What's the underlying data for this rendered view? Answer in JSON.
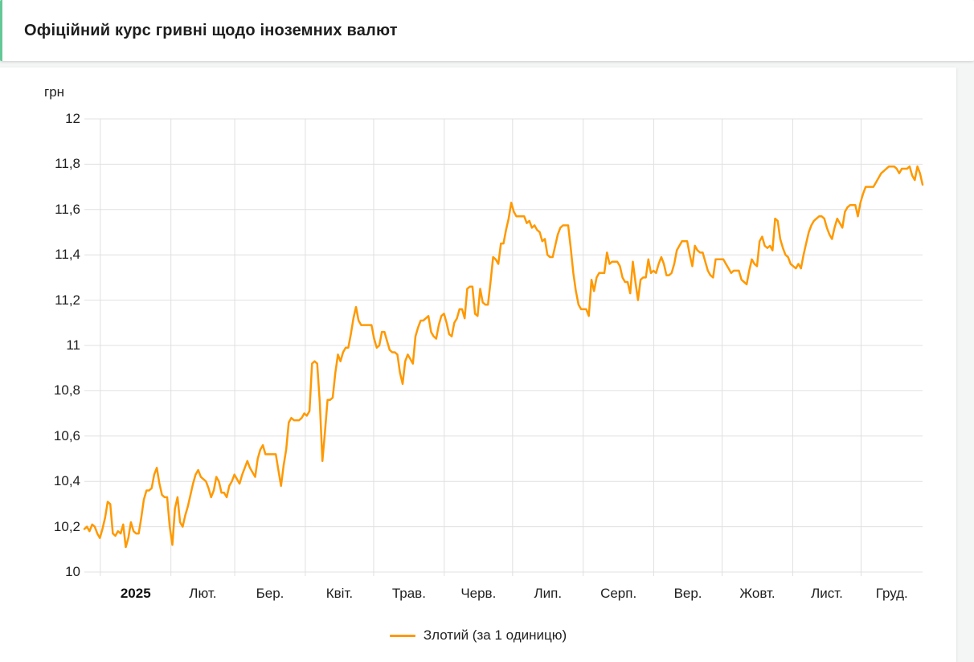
{
  "header": {
    "title": "Офіційний курс гривні щодо іноземних валют"
  },
  "colors": {
    "accent_green": "#64c896",
    "grid": "#e0e0e0",
    "axis_text": "#1f1f1f",
    "series_orange": "#ff9900"
  },
  "chart_data": {
    "type": "line",
    "title": "Офіційний курс гривні щодо іноземних валют",
    "grid": true,
    "legend_position": "bottom",
    "y_axis": {
      "unit": "грн",
      "min": 10,
      "max": 12,
      "step": 0.2,
      "tick_labels": [
        "12",
        "11,8",
        "11,6",
        "11,4",
        "11,2",
        "11",
        "10,8",
        "10,6",
        "10,4",
        "10,2",
        "10"
      ]
    },
    "x_axis": {
      "year": "2025",
      "lead_days": 7,
      "total_days": 368,
      "months": [
        {
          "label": "2025",
          "offset": 0,
          "bold": true
        },
        {
          "label": "Лют.",
          "offset": 31,
          "bold": false
        },
        {
          "label": "Бер.",
          "offset": 59,
          "bold": false
        },
        {
          "label": "Квіт.",
          "offset": 90,
          "bold": false
        },
        {
          "label": "Трав.",
          "offset": 120,
          "bold": false
        },
        {
          "label": "Черв.",
          "offset": 151,
          "bold": false
        },
        {
          "label": "Лип.",
          "offset": 181,
          "bold": false
        },
        {
          "label": "Серп.",
          "offset": 212,
          "bold": false
        },
        {
          "label": "Вер.",
          "offset": 243,
          "bold": false
        },
        {
          "label": "Жовт.",
          "offset": 273,
          "bold": false
        },
        {
          "label": "Лист.",
          "offset": 304,
          "bold": false
        },
        {
          "label": "Груд.",
          "offset": 334,
          "bold": false
        }
      ]
    },
    "series": [
      {
        "name": "Злотий (за 1 одиницю)",
        "color": "#ff9900",
        "values": [
          10.19,
          10.2,
          10.18,
          10.21,
          10.2,
          10.17,
          10.15,
          10.19,
          10.24,
          10.31,
          10.3,
          10.17,
          10.16,
          10.18,
          10.17,
          10.21,
          10.11,
          10.15,
          10.22,
          10.18,
          10.17,
          10.17,
          10.24,
          10.32,
          10.36,
          10.36,
          10.37,
          10.43,
          10.46,
          10.39,
          10.34,
          10.33,
          10.33,
          10.2,
          10.12,
          10.28,
          10.33,
          10.22,
          10.2,
          10.25,
          10.29,
          10.34,
          10.39,
          10.43,
          10.45,
          10.42,
          10.41,
          10.4,
          10.37,
          10.33,
          10.36,
          10.42,
          10.4,
          10.35,
          10.35,
          10.33,
          10.38,
          10.4,
          10.43,
          10.41,
          10.39,
          10.43,
          10.46,
          10.49,
          10.46,
          10.44,
          10.42,
          10.5,
          10.54,
          10.56,
          10.52,
          10.52,
          10.52,
          10.52,
          10.52,
          10.45,
          10.38,
          10.47,
          10.54,
          10.66,
          10.68,
          10.67,
          10.67,
          10.67,
          10.68,
          10.7,
          10.69,
          10.71,
          10.92,
          10.93,
          10.92,
          10.75,
          10.49,
          10.62,
          10.76,
          10.76,
          10.77,
          10.88,
          10.96,
          10.93,
          10.97,
          10.99,
          10.99,
          11.05,
          11.12,
          11.17,
          11.11,
          11.09,
          11.09,
          11.09,
          11.09,
          11.09,
          11.03,
          10.99,
          11.0,
          11.06,
          11.06,
          11.02,
          10.98,
          10.97,
          10.97,
          10.96,
          10.88,
          10.83,
          10.93,
          10.96,
          10.94,
          10.92,
          11.04,
          11.08,
          11.11,
          11.11,
          11.12,
          11.13,
          11.06,
          11.04,
          11.03,
          11.09,
          11.13,
          11.14,
          11.1,
          11.05,
          11.04,
          11.1,
          11.12,
          11.16,
          11.16,
          11.12,
          11.25,
          11.26,
          11.26,
          11.14,
          11.13,
          11.25,
          11.19,
          11.18,
          11.18,
          11.28,
          11.39,
          11.38,
          11.36,
          11.45,
          11.45,
          11.51,
          11.56,
          11.63,
          11.59,
          11.57,
          11.57,
          11.57,
          11.57,
          11.54,
          11.55,
          11.52,
          11.53,
          11.51,
          11.5,
          11.46,
          11.47,
          11.4,
          11.39,
          11.39,
          11.44,
          11.49,
          11.52,
          11.53,
          11.53,
          11.53,
          11.43,
          11.32,
          11.24,
          11.18,
          11.16,
          11.16,
          11.16,
          11.13,
          11.29,
          11.24,
          11.3,
          11.32,
          11.32,
          11.32,
          11.41,
          11.36,
          11.37,
          11.37,
          11.37,
          11.35,
          11.3,
          11.28,
          11.28,
          11.23,
          11.37,
          11.28,
          11.2,
          11.29,
          11.3,
          11.3,
          11.38,
          11.32,
          11.33,
          11.32,
          11.36,
          11.39,
          11.36,
          11.31,
          11.31,
          11.32,
          11.36,
          11.42,
          11.44,
          11.46,
          11.46,
          11.46,
          11.4,
          11.35,
          11.44,
          11.42,
          11.41,
          11.41,
          11.37,
          11.33,
          11.31,
          11.3,
          11.38,
          11.38,
          11.38,
          11.38,
          11.36,
          11.34,
          11.32,
          11.33,
          11.33,
          11.33,
          11.29,
          11.28,
          11.27,
          11.33,
          11.38,
          11.36,
          11.35,
          11.46,
          11.48,
          11.44,
          11.43,
          11.44,
          11.42,
          11.56,
          11.55,
          11.47,
          11.43,
          11.4,
          11.39,
          11.36,
          11.35,
          11.34,
          11.36,
          11.34,
          11.4,
          11.45,
          11.5,
          11.53,
          11.55,
          11.56,
          11.57,
          11.57,
          11.56,
          11.52,
          11.49,
          11.47,
          11.52,
          11.56,
          11.54,
          11.52,
          11.59,
          11.61,
          11.62,
          11.62,
          11.62,
          11.57,
          11.63,
          11.67,
          11.7,
          11.7,
          11.7,
          11.7,
          11.72,
          11.74,
          11.76,
          11.77,
          11.78,
          11.79,
          11.79,
          11.79,
          11.78,
          11.76,
          11.78,
          11.78,
          11.78,
          11.79,
          11.75,
          11.73,
          11.79,
          11.76,
          11.71
        ]
      }
    ]
  }
}
